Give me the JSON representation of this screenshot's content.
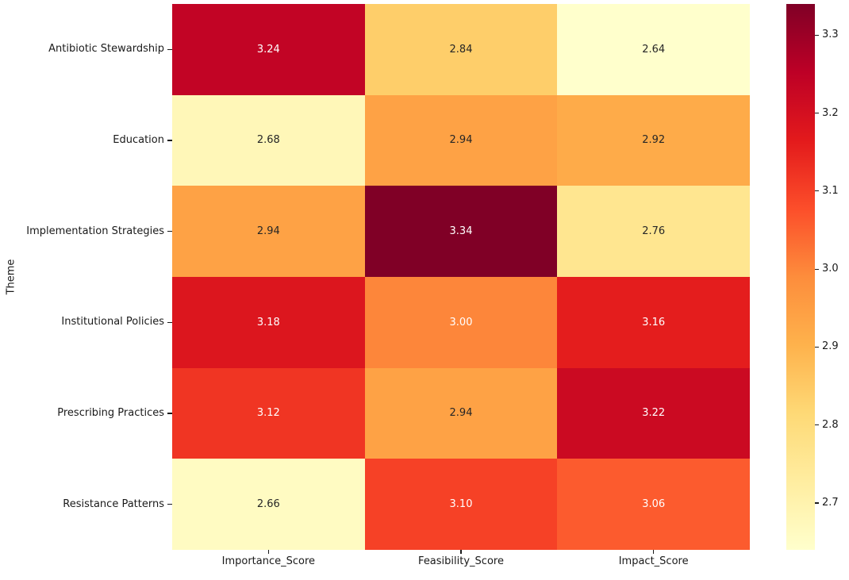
{
  "figure": {
    "background": "#ffffff",
    "text_color": "#1a1a1a"
  },
  "chart_data": {
    "type": "heatmap",
    "title": "",
    "xlabel": "",
    "ylabel": "Theme",
    "rows": [
      "Antibiotic Stewardship",
      "Education",
      "Implementation Strategies",
      "Institutional Policies",
      "Prescribing Practices",
      "Resistance Patterns"
    ],
    "columns": [
      "Importance_Score",
      "Feasibility_Score",
      "Impact_Score"
    ],
    "values": [
      [
        3.24,
        2.84,
        2.64
      ],
      [
        2.68,
        2.94,
        2.92
      ],
      [
        2.94,
        3.34,
        2.76
      ],
      [
        3.18,
        3.0,
        3.16
      ],
      [
        3.12,
        2.94,
        3.22
      ],
      [
        2.66,
        3.1,
        3.06
      ]
    ],
    "vmin": 2.64,
    "vmax": 3.34,
    "colormap": "YlOrRd",
    "colormap_stops": [
      "#FFFFCC",
      "#FFEDA0",
      "#FED976",
      "#FEB24C",
      "#FD8D3C",
      "#FC4E2A",
      "#E31A1C",
      "#BD0026",
      "#800026"
    ],
    "annotation_color_light": "#ffffff",
    "annotation_color_dark": "#262626",
    "grid": false,
    "legend_position": "colorbar-right",
    "colorbar": {
      "ticks": [
        3.3,
        3.2,
        3.1,
        3.0,
        2.9,
        2.8,
        2.7
      ]
    }
  }
}
